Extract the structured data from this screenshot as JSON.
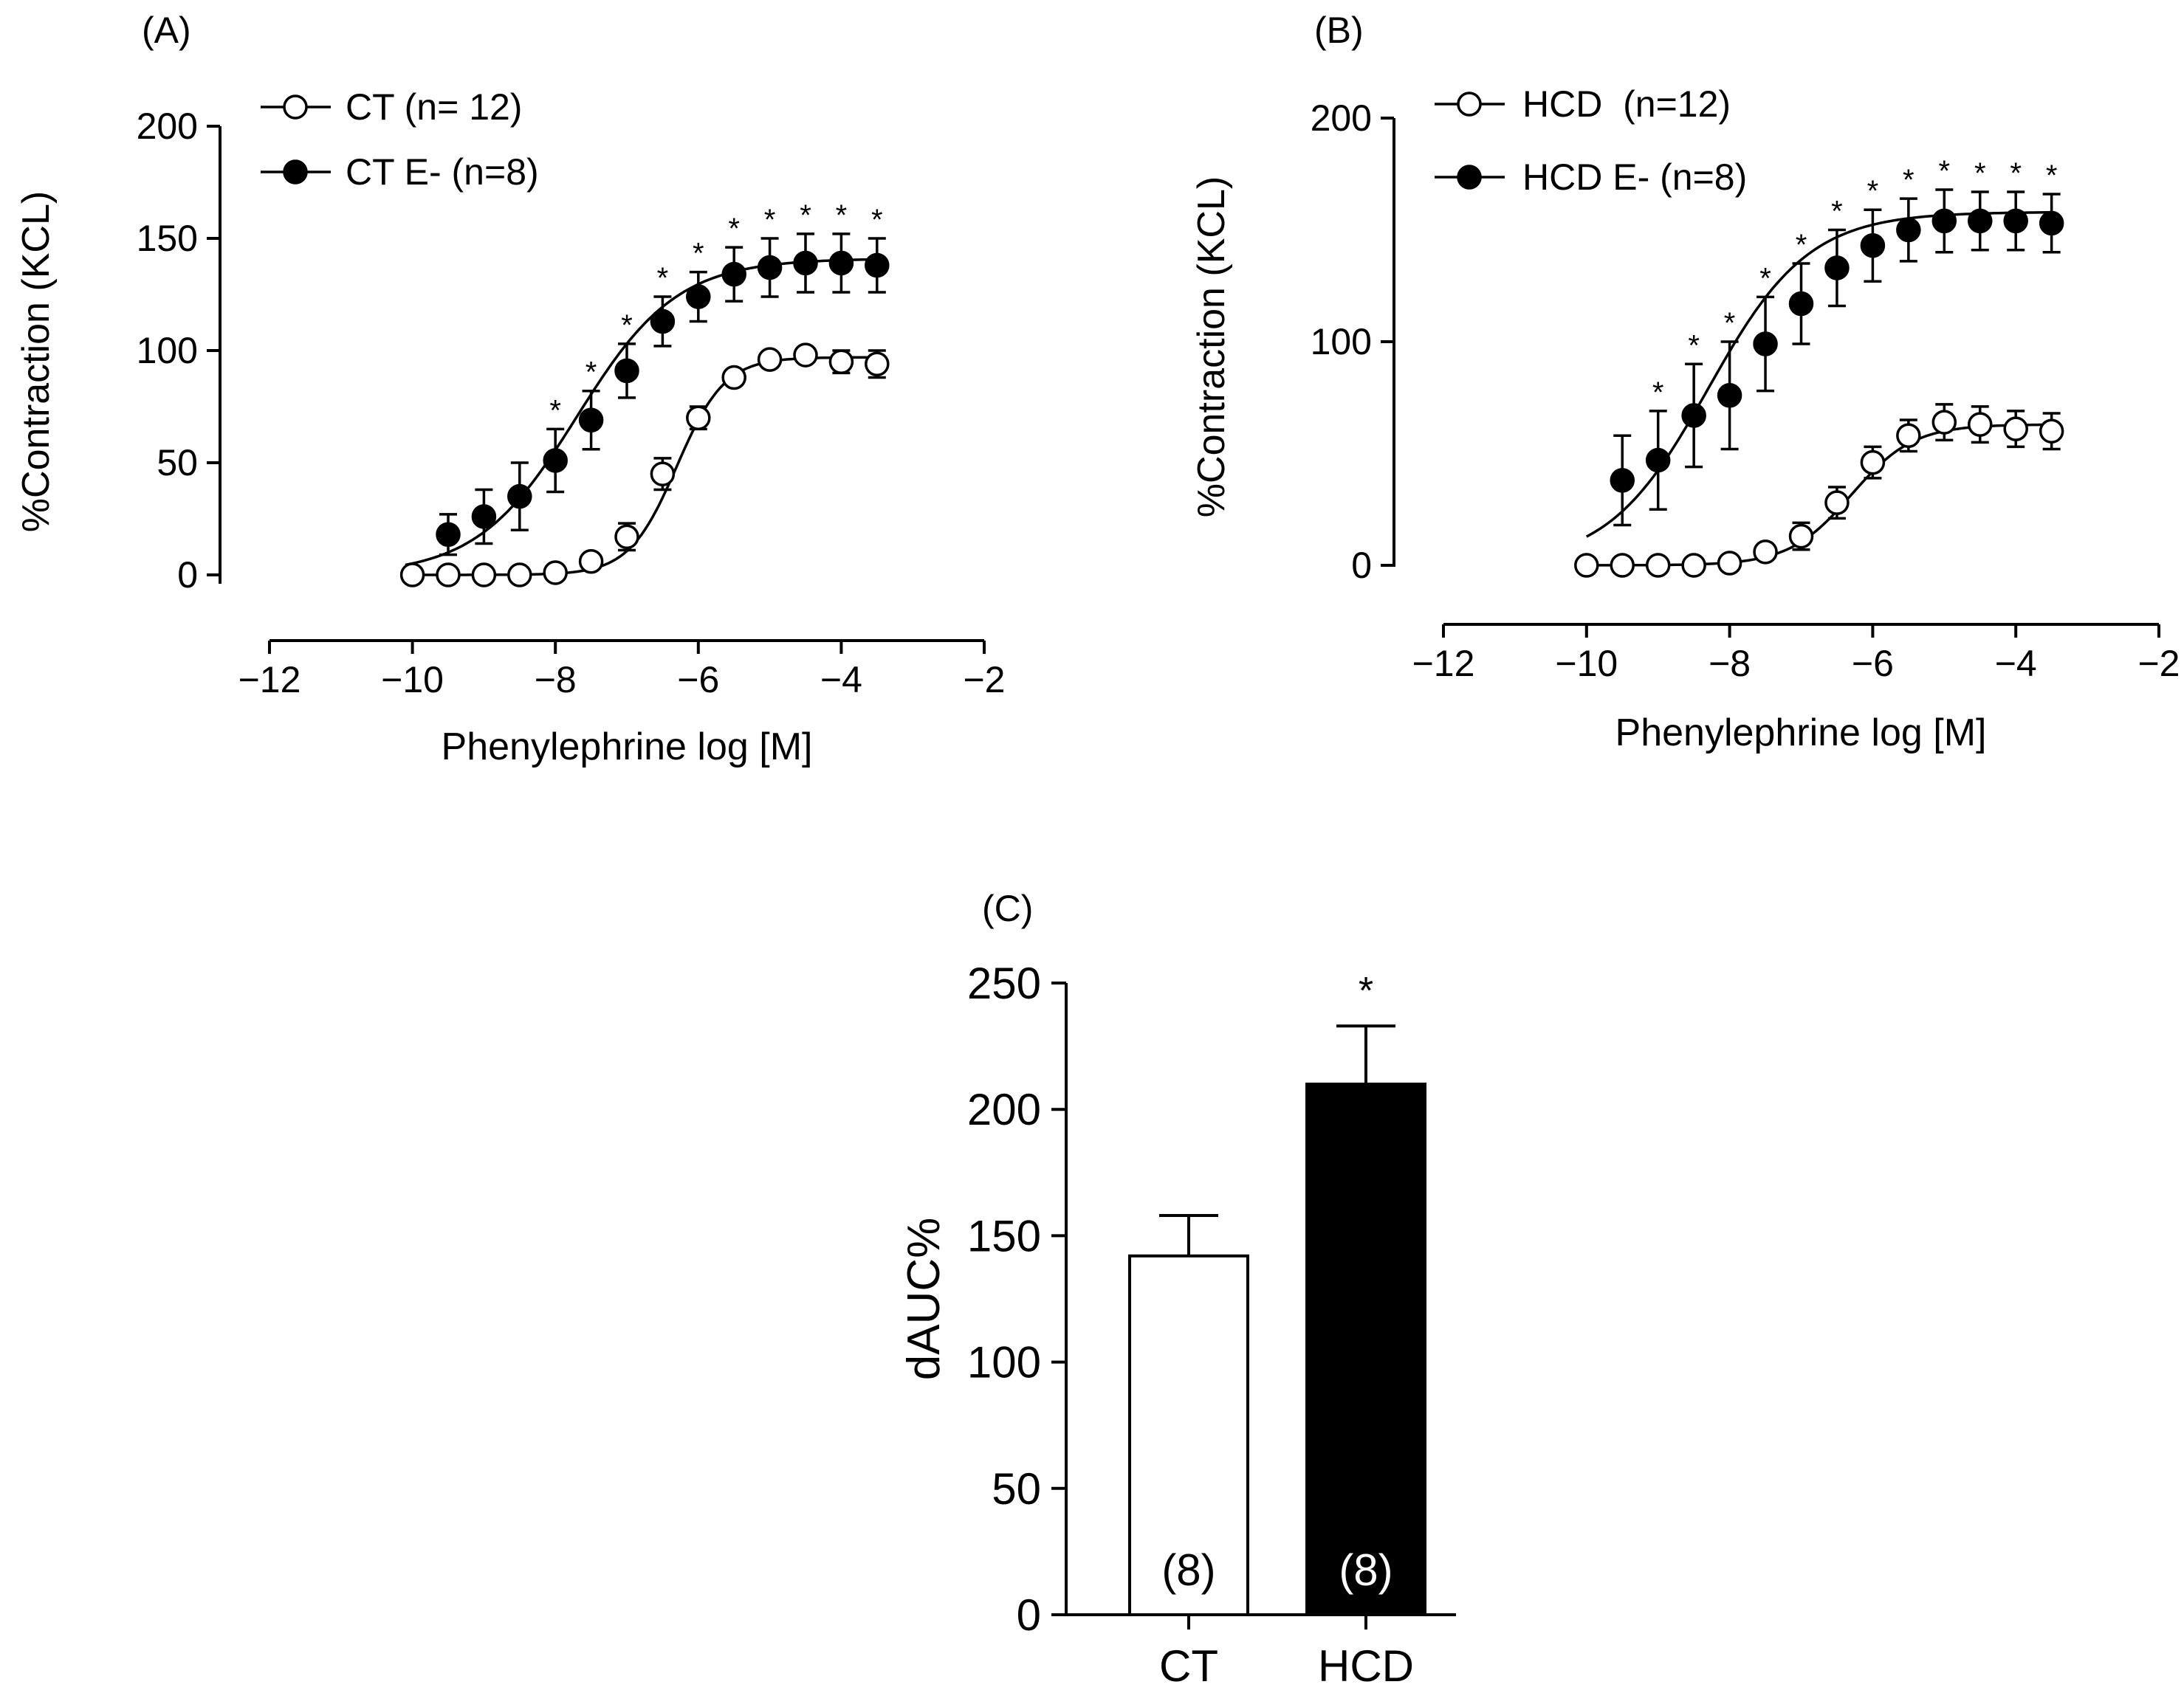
{
  "figure": {
    "panels": [
      "(A)",
      "(B)",
      "(C)"
    ],
    "colors": {
      "open_fill": "#ffffff",
      "filled": "#000000",
      "axis": "#000000"
    }
  },
  "chart_data": [
    {
      "id": "A",
      "type": "line",
      "panel_label": "(A)",
      "xlabel": "Phenylephrine log [M]",
      "ylabel": "%Contraction (KCL)",
      "xlim": [
        -12,
        -2
      ],
      "ylim": [
        0,
        200
      ],
      "xticks": [
        "−12",
        "−10",
        "−8",
        "−6",
        "−4",
        "−2"
      ],
      "yticks": [
        "0",
        "50",
        "100",
        "150",
        "200"
      ],
      "xtick_values": [
        -12,
        -10,
        -8,
        -6,
        -4,
        -2
      ],
      "ytick_values": [
        0,
        50,
        100,
        150,
        200
      ],
      "x": [
        -10,
        -9.5,
        -9,
        -8.5,
        -8,
        -7.5,
        -7,
        -6.5,
        -6,
        -5.5,
        -5,
        -4.5,
        -4,
        -3.5
      ],
      "series": [
        {
          "name": "CT (n= 12)",
          "marker": "open",
          "values": [
            0,
            0,
            0,
            0,
            1,
            6,
            17,
            45,
            70,
            88,
            96,
            98,
            95,
            94
          ],
          "errors": [
            0,
            0,
            0,
            0,
            0,
            0,
            6,
            7,
            5,
            0,
            0,
            0,
            5,
            6
          ],
          "fit": {
            "bottom": 0,
            "top": 97,
            "logEC50": -6.3,
            "hill": 1.3
          }
        },
        {
          "name": "CT E- (n=8)",
          "marker": "filled",
          "values": [
            null,
            18,
            26,
            35,
            51,
            69,
            91,
            113,
            124,
            134,
            137,
            139,
            139,
            138
          ],
          "errors": [
            null,
            9,
            12,
            15,
            14,
            13,
            12,
            11,
            11,
            12,
            13,
            13,
            13,
            12
          ],
          "fit": {
            "bottom": 0,
            "top": 141,
            "logEC50": -7.7,
            "hill": 0.62
          }
        }
      ],
      "significance": {
        "symbol": "*",
        "x": [
          -8,
          -7.5,
          -7,
          -6.5,
          -6,
          -5.5,
          -5,
          -4.5,
          -4,
          -3.5
        ]
      }
    },
    {
      "id": "B",
      "type": "line",
      "panel_label": "(B)",
      "xlabel": "Phenylephrine log [M]",
      "ylabel": "%Contraction (KCL)",
      "xlim": [
        -12,
        -2
      ],
      "ylim": [
        0,
        200
      ],
      "xticks": [
        "−12",
        "−10",
        "−8",
        "−6",
        "−4",
        "−2"
      ],
      "yticks": [
        "0",
        "100",
        "200"
      ],
      "xtick_values": [
        -12,
        -10,
        -8,
        -6,
        -4,
        -2
      ],
      "ytick_values": [
        0,
        100,
        200
      ],
      "x": [
        -10,
        -9.5,
        -9,
        -8.5,
        -8,
        -7.5,
        -7,
        -6.5,
        -6,
        -5.5,
        -5,
        -4.5,
        -4,
        -3.5
      ],
      "series": [
        {
          "name": "HCD  (n=12)",
          "marker": "open",
          "values": [
            0,
            0,
            0,
            0,
            1,
            6,
            13,
            28,
            46,
            58,
            64,
            63,
            61,
            60
          ],
          "errors": [
            0,
            0,
            0,
            0,
            0,
            0,
            6,
            7,
            7,
            7,
            8,
            8,
            8,
            8
          ],
          "fit": {
            "bottom": 0,
            "top": 63,
            "logEC50": -6.3,
            "hill": 1.0
          }
        },
        {
          "name": "HCD E- (n=8)",
          "marker": "filled",
          "values": [
            null,
            38,
            47,
            67,
            76,
            99,
            117,
            133,
            143,
            150,
            154,
            154,
            154,
            153
          ],
          "errors": [
            null,
            20,
            22,
            23,
            24,
            21,
            18,
            17,
            16,
            14,
            14,
            13,
            13,
            13
          ],
          "fit": {
            "bottom": 0,
            "top": 158,
            "logEC50": -8.3,
            "hill": 0.62
          }
        }
      ],
      "significance": {
        "symbol": "*",
        "x": [
          -9,
          -8.5,
          -8,
          -7.5,
          -7,
          -6.5,
          -6,
          -5.5,
          -5,
          -4.5,
          -4,
          -3.5
        ]
      }
    },
    {
      "id": "C",
      "type": "bar",
      "panel_label": "(C)",
      "ylabel": "dAUC%",
      "ylim": [
        0,
        250
      ],
      "yticks": [
        "0",
        "50",
        "100",
        "150",
        "200",
        "250"
      ],
      "ytick_values": [
        0,
        50,
        100,
        150,
        200,
        250
      ],
      "categories": [
        "CT",
        "HCD"
      ],
      "values": [
        142,
        210
      ],
      "errors": [
        16,
        23
      ],
      "n_labels": [
        "(8)",
        "(8)"
      ],
      "fills": [
        "#ffffff",
        "#000000"
      ],
      "significance": {
        "symbol": "*",
        "category": "HCD"
      }
    }
  ]
}
